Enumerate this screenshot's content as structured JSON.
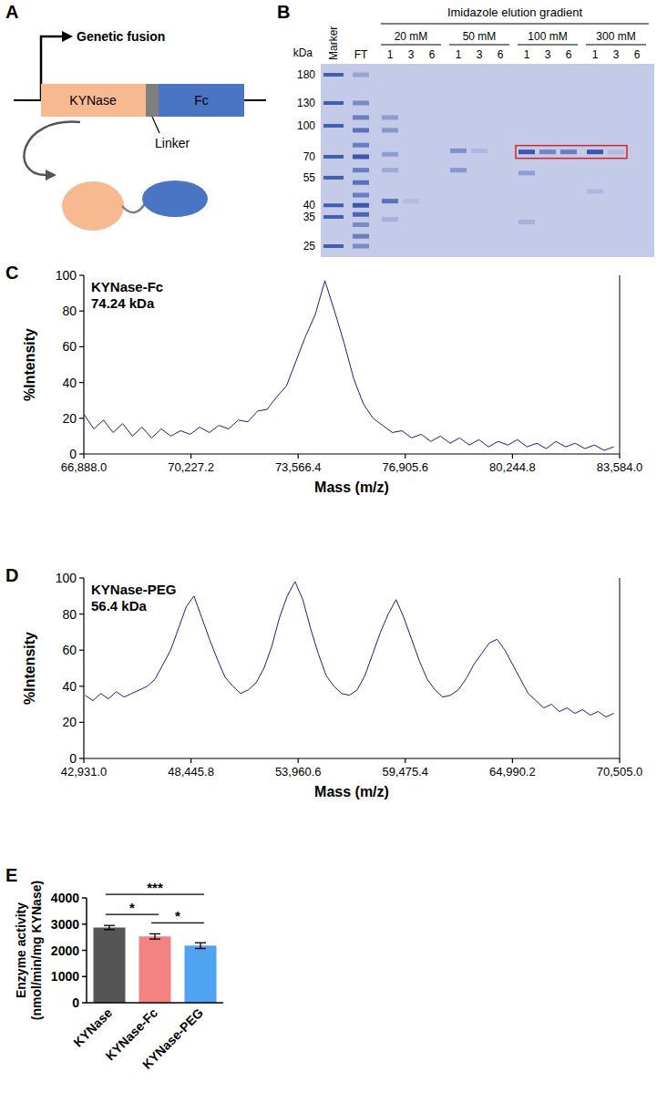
{
  "diagram": {
    "panel": "A",
    "promoter_label": "Genetic fusion",
    "parts": [
      {
        "label": "KYNase",
        "color": "#f7b98f"
      },
      {
        "label": "Linker",
        "color": "#7f7f7f"
      },
      {
        "label": "Fc",
        "color": "#4a74c4"
      }
    ]
  },
  "gel": {
    "panel": "B",
    "title": "Imidazole elution gradient",
    "unit": "kDa",
    "marker_label": "Marker",
    "markers": [
      180,
      130,
      100,
      70,
      55,
      40,
      35,
      25
    ],
    "highlight_kda": 74,
    "ft_lane": {
      "label": "FT",
      "bands": [
        {
          "kda": 180,
          "amount": 0.3
        },
        {
          "kda": 130,
          "amount": 0.5
        },
        {
          "kda": 110,
          "amount": 0.6
        },
        {
          "kda": 95,
          "amount": 0.7
        },
        {
          "kda": 80,
          "amount": 0.6
        },
        {
          "kda": 70,
          "amount": 0.9
        },
        {
          "kda": 60,
          "amount": 0.6
        },
        {
          "kda": 52,
          "amount": 0.7
        },
        {
          "kda": 45,
          "amount": 0.6
        },
        {
          "kda": 40,
          "amount": 0.9
        },
        {
          "kda": 36,
          "amount": 0.8
        },
        {
          "kda": 32,
          "amount": 0.5
        },
        {
          "kda": 28,
          "amount": 0.6
        },
        {
          "kda": 25,
          "amount": 0.5
        }
      ]
    },
    "groups": [
      {
        "label": "20 mM",
        "lanes": [
          {
            "label": "1",
            "bands": [
              {
                "kda": 110,
                "amount": 0.35
              },
              {
                "kda": 95,
                "amount": 0.4
              },
              {
                "kda": 72,
                "amount": 0.35
              },
              {
                "kda": 60,
                "amount": 0.25
              },
              {
                "kda": 42,
                "amount": 0.7
              },
              {
                "kda": 34,
                "amount": 0.2
              }
            ]
          },
          {
            "label": "3",
            "bands": [
              {
                "kda": 42,
                "amount": 0.1
              }
            ]
          },
          {
            "label": "6",
            "bands": []
          }
        ]
      },
      {
        "label": "50 mM",
        "lanes": [
          {
            "label": "1",
            "bands": [
              {
                "kda": 75,
                "amount": 0.45
              },
              {
                "kda": 60,
                "amount": 0.4
              }
            ]
          },
          {
            "label": "3",
            "bands": [
              {
                "kda": 75,
                "amount": 0.15
              }
            ]
          },
          {
            "label": "6",
            "bands": []
          }
        ]
      },
      {
        "label": "100 mM",
        "lanes": [
          {
            "label": "1",
            "bands": [
              {
                "kda": 74,
                "amount": 0.9
              },
              {
                "kda": 58,
                "amount": 0.35
              },
              {
                "kda": 33,
                "amount": 0.2
              }
            ]
          },
          {
            "label": "3",
            "bands": [
              {
                "kda": 74,
                "amount": 0.55
              }
            ]
          },
          {
            "label": "6",
            "bands": [
              {
                "kda": 74,
                "amount": 0.6
              }
            ]
          }
        ]
      },
      {
        "label": "300 mM",
        "lanes": [
          {
            "label": "1",
            "bands": [
              {
                "kda": 74,
                "amount": 0.9
              },
              {
                "kda": 47,
                "amount": 0.15
              }
            ]
          },
          {
            "label": "3",
            "bands": [
              {
                "kda": 74,
                "amount": 0.12
              }
            ]
          },
          {
            "label": "6",
            "bands": []
          }
        ]
      }
    ]
  },
  "chart_data": [
    {
      "type": "line",
      "panel": "C",
      "title": "KYNase-Fc",
      "subtitle": "74.24 kDa",
      "x_label": "Mass (m/z)",
      "y_label": "%Intensity",
      "color": "#1c1c8c",
      "x": [
        66900,
        67200,
        67500,
        67800,
        68100,
        68400,
        68700,
        69000,
        69300,
        69600,
        69900,
        70200,
        70500,
        70800,
        71100,
        71400,
        71700,
        72000,
        72300,
        72600,
        72900,
        73200,
        73500,
        73800,
        74100,
        74400,
        74700,
        75000,
        75300,
        75600,
        75900,
        76200,
        76500,
        76800,
        77100,
        77400,
        77700,
        78000,
        78300,
        78600,
        78900,
        79200,
        79500,
        79800,
        80100,
        80400,
        80700,
        81000,
        81300,
        81600,
        81900,
        82200,
        82500,
        82800,
        83100,
        83400
      ],
      "values": [
        22,
        14,
        19,
        12,
        17,
        10,
        15,
        9,
        14,
        10,
        13,
        11,
        15,
        12,
        16,
        14,
        19,
        18,
        24,
        25,
        32,
        38,
        52,
        66,
        78,
        97,
        80,
        62,
        42,
        28,
        20,
        16,
        12,
        13,
        9,
        11,
        7,
        10,
        6,
        9,
        5,
        8,
        4,
        7,
        5,
        8,
        4,
        6,
        3,
        7,
        4,
        6,
        3,
        5,
        2,
        4
      ],
      "xlim": [
        66888.0,
        83584.0
      ],
      "xticks": [
        {
          "value": 66888.0,
          "label": "66,888.0"
        },
        {
          "value": 70227.2,
          "label": "70,227.2"
        },
        {
          "value": 73566.4,
          "label": "73,566.4"
        },
        {
          "value": 76905.6,
          "label": "76,905.6"
        },
        {
          "value": 80244.8,
          "label": "80,244.8"
        },
        {
          "value": 83584.0,
          "label": "83,584.0"
        }
      ],
      "ylim": [
        0,
        100
      ],
      "yticks": [
        0,
        20,
        40,
        60,
        80,
        100
      ]
    },
    {
      "type": "line",
      "panel": "D",
      "title": "KYNase-PEG",
      "subtitle": "56.4 kDa",
      "x_label": "Mass (m/z)",
      "y_label": "%Intensity",
      "color": "#1c1c8c",
      "x": [
        43000,
        43400,
        43800,
        44200,
        44600,
        45000,
        45400,
        45800,
        46200,
        46600,
        47000,
        47400,
        47800,
        48200,
        48600,
        49000,
        49400,
        49800,
        50200,
        50600,
        51000,
        51400,
        51800,
        52200,
        52600,
        53000,
        53400,
        53800,
        54200,
        54600,
        55000,
        55400,
        55800,
        56200,
        56600,
        57000,
        57400,
        57800,
        58200,
        58600,
        59000,
        59400,
        59800,
        60200,
        60600,
        61000,
        61400,
        61800,
        62200,
        62600,
        63000,
        63400,
        63800,
        64200,
        64600,
        65000,
        65400,
        65800,
        66200,
        66600,
        67000,
        67400,
        67800,
        68200,
        68600,
        69000,
        69400,
        69800,
        70200
      ],
      "values": [
        35,
        32,
        36,
        33,
        37,
        34,
        36,
        38,
        40,
        44,
        52,
        60,
        72,
        84,
        90,
        78,
        66,
        55,
        45,
        40,
        36,
        38,
        42,
        50,
        62,
        78,
        90,
        98,
        88,
        72,
        58,
        46,
        40,
        36,
        35,
        38,
        46,
        58,
        70,
        80,
        88,
        78,
        66,
        54,
        44,
        38,
        34,
        35,
        38,
        44,
        52,
        58,
        64,
        66,
        60,
        52,
        44,
        36,
        32,
        28,
        30,
        26,
        28,
        25,
        27,
        24,
        26,
        23,
        25
      ],
      "xlim": [
        42931.0,
        70505.0
      ],
      "xticks": [
        {
          "value": 42931.0,
          "label": "42,931.0"
        },
        {
          "value": 48445.8,
          "label": "48,445.8"
        },
        {
          "value": 53960.6,
          "label": "53,960.6"
        },
        {
          "value": 59475.4,
          "label": "59,475.4"
        },
        {
          "value": 64990.2,
          "label": "64,990.2"
        },
        {
          "value": 70505.0,
          "label": "70,505.0"
        }
      ],
      "ylim": [
        0,
        100
      ],
      "yticks": [
        0,
        20,
        40,
        60,
        80,
        100
      ]
    },
    {
      "type": "bar",
      "panel": "E",
      "y_label": "Enzyme activity (nmol/min/mg KYNase)",
      "categories": [
        "KYNase",
        "KYNase-Fc",
        "KYNase-PEG"
      ],
      "values": [
        2870,
        2530,
        2180
      ],
      "errors": [
        80,
        100,
        110
      ],
      "colors": [
        "#555555",
        "#f58282",
        "#4fa3f0"
      ],
      "ylim": [
        0,
        4000
      ],
      "yticks": [
        0,
        1000,
        2000,
        3000,
        4000
      ],
      "annotations": [
        {
          "from": 0,
          "to": 1,
          "label": "*"
        },
        {
          "from": 0,
          "to": 2,
          "label": "***"
        },
        {
          "from": 1,
          "to": 2,
          "label": "*"
        }
      ]
    }
  ]
}
